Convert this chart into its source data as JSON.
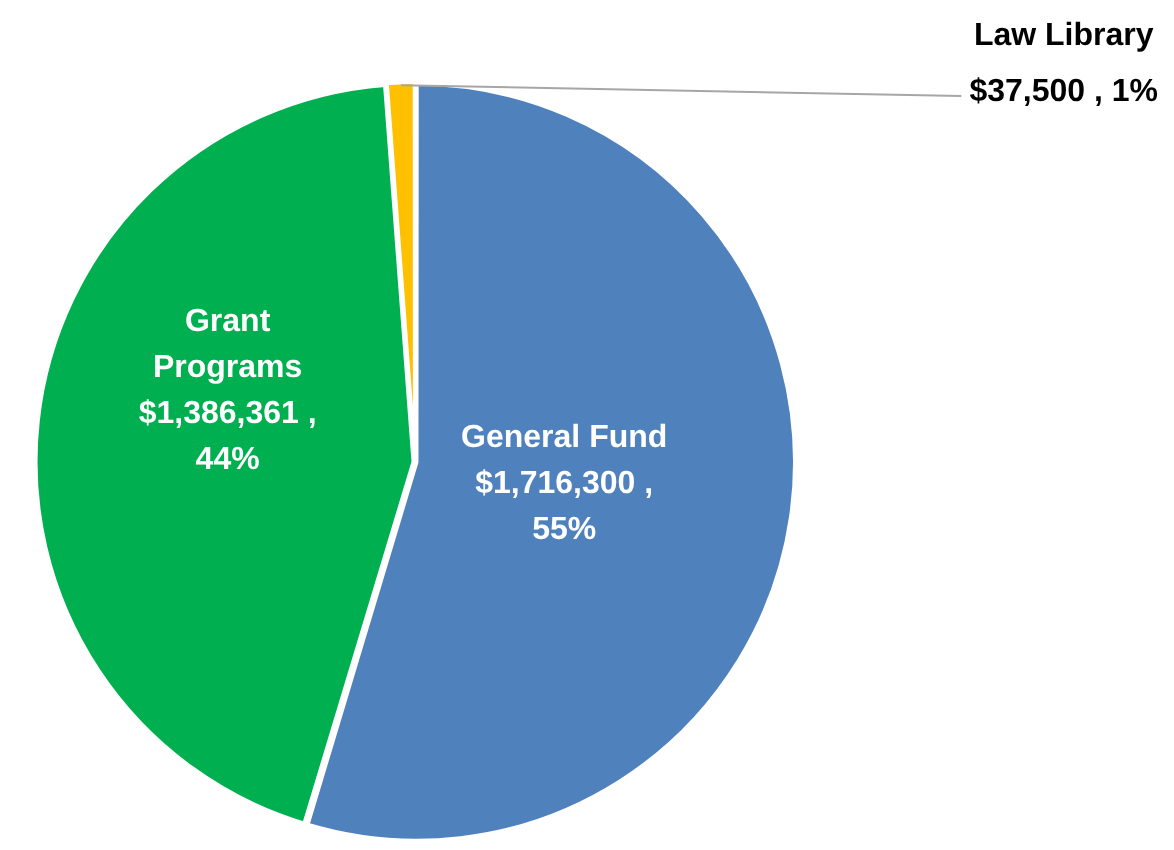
{
  "chart_data": {
    "type": "pie",
    "categories": [
      "General Fund",
      "Grant Programs",
      "Law Library"
    ],
    "values": [
      1716300,
      1386361,
      37500
    ],
    "colors": [
      "#4f81bd",
      "#00b050",
      "#ffc000"
    ],
    "value_labels": [
      "$1,716,300 , 55%",
      "$1,386,361 , 44%",
      "$37,500 , 1%"
    ],
    "legend": false
  }
}
